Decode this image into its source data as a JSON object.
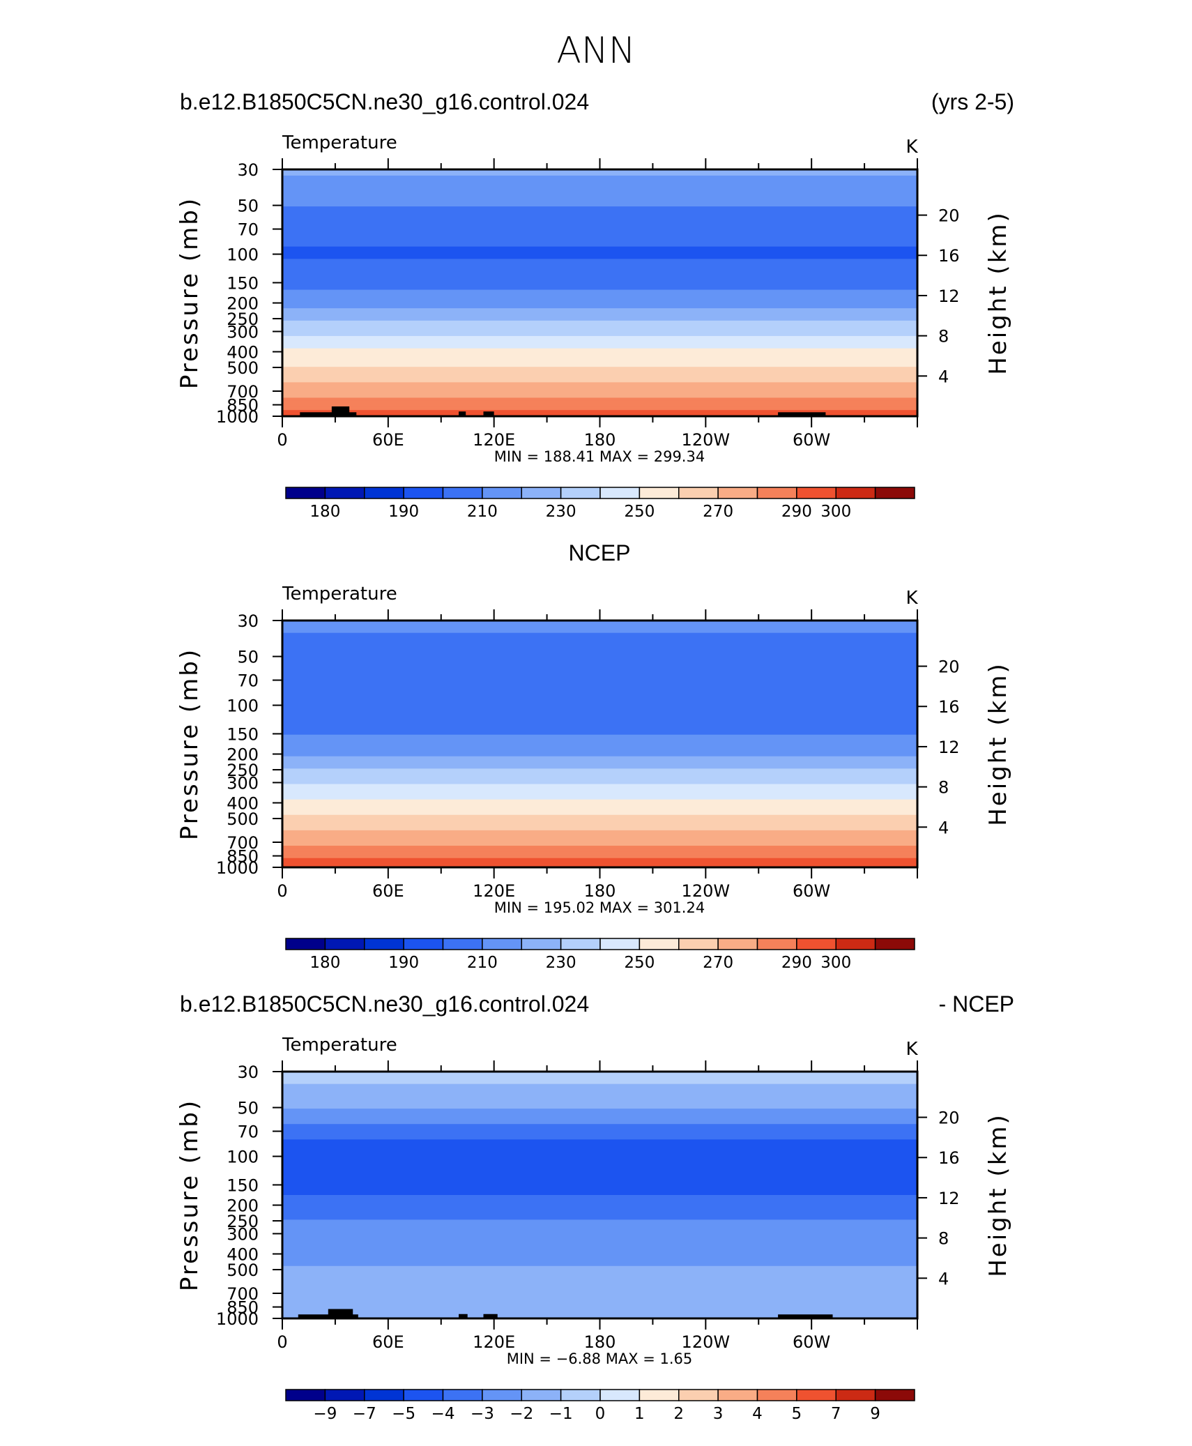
{
  "figure": {
    "title": "ANN"
  },
  "chart_data": [
    {
      "type": "heatmap",
      "header_left": "b.e12.B1850C5CN.ne30_g16.control.024",
      "header_right": "(yrs 2-5)",
      "variable": "Temperature",
      "units": "K",
      "ylabel": "Pressure (mb)",
      "ylabel_right": "Height (km)",
      "pressure_ticks": [
        "30",
        "50",
        "70",
        "100",
        "150",
        "200",
        "250",
        "300",
        "400",
        "500",
        "700",
        "850",
        "1000"
      ],
      "height_ticks": [
        "20",
        "16",
        "12",
        "8",
        "4"
      ],
      "lon_ticks": [
        "0",
        "60E",
        "120E",
        "180",
        "120W",
        "60W"
      ],
      "stats": "MIN =  188.41   MAX =  299.34",
      "colorbar_labels": [
        "180",
        "190",
        "210",
        "230",
        "250",
        "270",
        "290",
        "300"
      ],
      "levels": [
        175,
        180,
        185,
        190,
        200,
        210,
        220,
        230,
        240,
        250,
        260,
        270,
        280,
        290,
        295,
        300
      ],
      "profile": [
        {
          "p": 30,
          "v": 222
        },
        {
          "p": 40,
          "v": 216
        },
        {
          "p": 55,
          "v": 208
        },
        {
          "p": 75,
          "v": 202
        },
        {
          "p": 100,
          "v": 199
        },
        {
          "p": 150,
          "v": 207
        },
        {
          "p": 200,
          "v": 217
        },
        {
          "p": 250,
          "v": 228
        },
        {
          "p": 300,
          "v": 237
        },
        {
          "p": 400,
          "v": 252
        },
        {
          "p": 500,
          "v": 261
        },
        {
          "p": 700,
          "v": 276
        },
        {
          "p": 850,
          "v": 286
        },
        {
          "p": 1000,
          "v": 295
        }
      ],
      "topography": [
        {
          "lon0": 10,
          "lon1": 42,
          "p": 945
        },
        {
          "lon0": 28,
          "lon1": 38,
          "p": 870
        },
        {
          "lon0": 100,
          "lon1": 104,
          "p": 935
        },
        {
          "lon0": 114,
          "lon1": 120,
          "p": 935
        },
        {
          "lon0": 281,
          "lon1": 308,
          "p": 945
        }
      ]
    },
    {
      "type": "heatmap",
      "header_center": "NCEP",
      "variable": "Temperature",
      "units": "K",
      "ylabel": "Pressure (mb)",
      "ylabel_right": "Height (km)",
      "pressure_ticks": [
        "30",
        "50",
        "70",
        "100",
        "150",
        "200",
        "250",
        "300",
        "400",
        "500",
        "700",
        "850",
        "1000"
      ],
      "height_ticks": [
        "20",
        "16",
        "12",
        "8",
        "4"
      ],
      "lon_ticks": [
        "0",
        "60E",
        "120E",
        "180",
        "120W",
        "60W"
      ],
      "stats": "MIN =  195.02   MAX =  301.24",
      "colorbar_labels": [
        "180",
        "190",
        "210",
        "230",
        "250",
        "270",
        "290",
        "300"
      ],
      "levels": [
        175,
        180,
        185,
        190,
        200,
        210,
        220,
        230,
        240,
        250,
        260,
        270,
        280,
        290,
        295,
        300
      ],
      "profile": [
        {
          "p": 30,
          "v": 214
        },
        {
          "p": 40,
          "v": 207
        },
        {
          "p": 55,
          "v": 203
        },
        {
          "p": 75,
          "v": 201
        },
        {
          "p": 100,
          "v": 202
        },
        {
          "p": 150,
          "v": 209
        },
        {
          "p": 200,
          "v": 219
        },
        {
          "p": 250,
          "v": 230
        },
        {
          "p": 300,
          "v": 239
        },
        {
          "p": 400,
          "v": 253
        },
        {
          "p": 500,
          "v": 262
        },
        {
          "p": 700,
          "v": 278
        },
        {
          "p": 850,
          "v": 288
        },
        {
          "p": 1000,
          "v": 296
        }
      ],
      "topography": []
    },
    {
      "type": "heatmap",
      "header_left": "b.e12.B1850C5CN.ne30_g16.control.024",
      "header_right": "- NCEP",
      "variable": "Temperature",
      "units": "K",
      "ylabel": "Pressure (mb)",
      "ylabel_right": "Height (km)",
      "pressure_ticks": [
        "30",
        "50",
        "70",
        "100",
        "150",
        "200",
        "250",
        "300",
        "400",
        "500",
        "700",
        "850",
        "1000"
      ],
      "height_ticks": [
        "20",
        "16",
        "12",
        "8",
        "4"
      ],
      "lon_ticks": [
        "0",
        "60E",
        "120E",
        "180",
        "120W",
        "60W"
      ],
      "stats": "MIN =    −6.88   MAX =     1.65",
      "colorbar_labels": [
        "−9",
        "−7",
        "−5",
        "−4",
        "−3",
        "−2",
        "−1",
        "0",
        "1",
        "2",
        "3",
        "4",
        "5",
        "7",
        "9"
      ],
      "levels": [
        -11,
        -9,
        -7,
        -5,
        -4,
        -3,
        -2,
        -1,
        0,
        1,
        2,
        3,
        4,
        5,
        7,
        9,
        11
      ],
      "profile": [
        {
          "p": 30,
          "v": -0.6
        },
        {
          "p": 40,
          "v": -1.2
        },
        {
          "p": 55,
          "v": -2.3
        },
        {
          "p": 70,
          "v": -3.4
        },
        {
          "p": 85,
          "v": -4.5
        },
        {
          "p": 100,
          "v": -4.6
        },
        {
          "p": 150,
          "v": -4.4
        },
        {
          "p": 200,
          "v": -3.6
        },
        {
          "p": 250,
          "v": -3.0
        },
        {
          "p": 300,
          "v": -2.6
        },
        {
          "p": 400,
          "v": -2.3
        },
        {
          "p": 500,
          "v": -1.9
        },
        {
          "p": 700,
          "v": -1.6
        },
        {
          "p": 850,
          "v": -1.5
        },
        {
          "p": 1000,
          "v": -1.2
        }
      ],
      "topography": [
        {
          "lon0": 9,
          "lon1": 43,
          "p": 945
        },
        {
          "lon0": 26,
          "lon1": 40,
          "p": 875
        },
        {
          "lon0": 100,
          "lon1": 105,
          "p": 940
        },
        {
          "lon0": 114,
          "lon1": 122,
          "p": 940
        },
        {
          "lon0": 281,
          "lon1": 312,
          "p": 945
        }
      ]
    }
  ],
  "colors": {
    "temperature": [
      "#00008b",
      "#0018b4",
      "#0034d4",
      "#1c54f0",
      "#3c72f4",
      "#6494f6",
      "#8cb2f8",
      "#b4d0fb",
      "#d8e8fd",
      "#fdebd8",
      "#fbcfb0",
      "#f9ac86",
      "#f5815a",
      "#ef5230",
      "#cc2a14",
      "#8c0a08"
    ],
    "difference": [
      "#00008b",
      "#0018b4",
      "#0034d4",
      "#1c54f0",
      "#3c72f4",
      "#6494f6",
      "#8cb2f8",
      "#b4d0fb",
      "#d8e8fd",
      "#fdebd8",
      "#fbcfb0",
      "#f9ac86",
      "#f5815a",
      "#ef5230",
      "#cc2a14",
      "#8c0a08"
    ]
  }
}
